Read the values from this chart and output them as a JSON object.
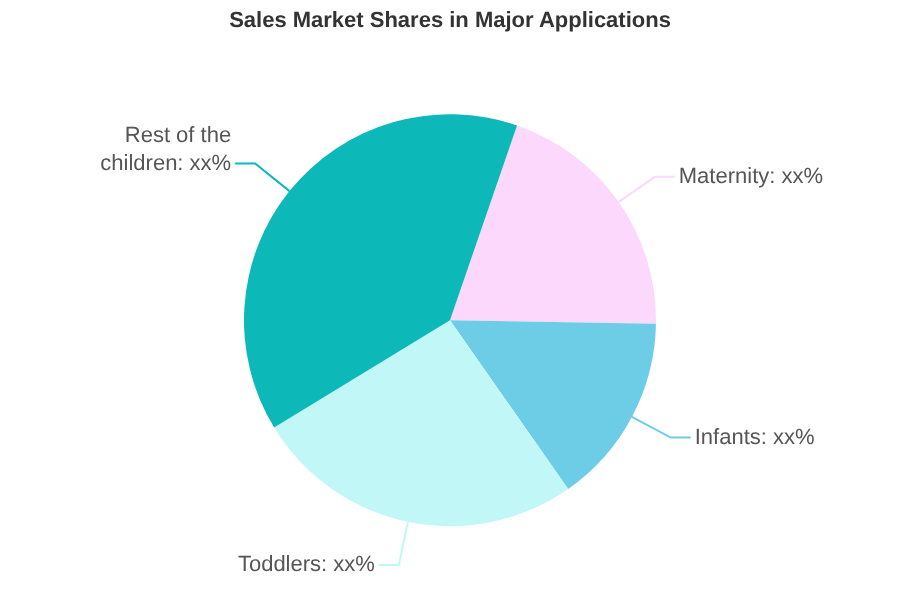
{
  "chart_data": {
    "type": "pie",
    "title": "Sales Market Shares in Major Applications",
    "categories": [
      "Maternity: xx%",
      "Infants: xx%",
      "Toddlers: xx%",
      "Rest of the children: xx%"
    ],
    "values": [
      20,
      15,
      26,
      39
    ],
    "colors": [
      "#fcd9fc",
      "#6ecde6",
      "#c2f7f7",
      "#0db8b8"
    ],
    "legend": false
  }
}
